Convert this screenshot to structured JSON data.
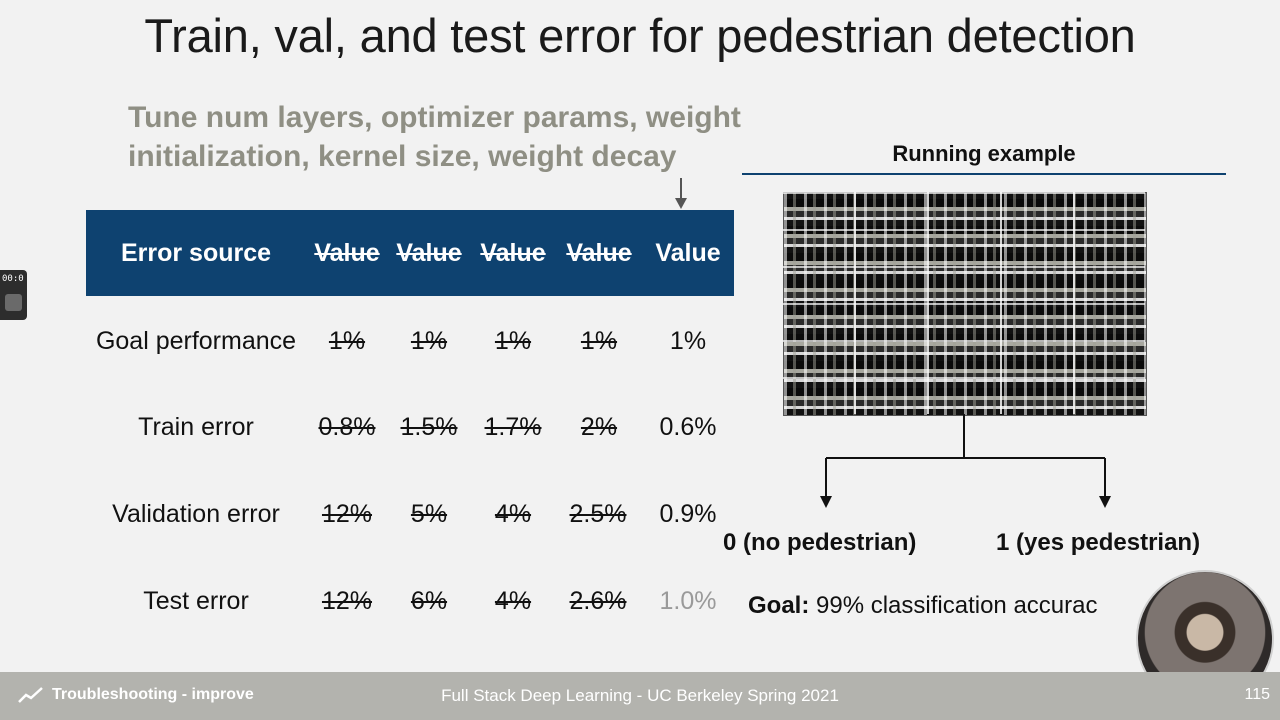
{
  "slide": {
    "title": "Train, val, and test error for pedestrian detection",
    "tune_note": "Tune num layers, optimizer params, weight initialization, kernel size, weight decay"
  },
  "table": {
    "header_label": "Error source",
    "value_headers": [
      "Value",
      "Value",
      "Value",
      "Value",
      "Value"
    ],
    "rows": [
      {
        "label": "Goal performance",
        "values": [
          "1%",
          "1%",
          "1%",
          "1%",
          "1%"
        ]
      },
      {
        "label": "Train error",
        "values": [
          "0.8%",
          "1.5%",
          "1.7%",
          "2%",
          "0.6%"
        ]
      },
      {
        "label": "Validation error",
        "values": [
          "12%",
          "5%",
          "4%",
          "2.5%",
          "0.9%"
        ]
      },
      {
        "label": "Test error",
        "values": [
          "12%",
          "6%",
          "4%",
          "2.6%",
          "1.0%"
        ]
      }
    ]
  },
  "running_example": {
    "title": "Running example",
    "outcome_no": "0 (no pedestrian)",
    "outcome_yes": "1 (yes pedestrian)",
    "goal_label": "Goal:",
    "goal_text": "99% classification accurac"
  },
  "timer": {
    "text": "00:0"
  },
  "footer": {
    "section": "Troubleshooting - improve",
    "course": "Full Stack Deep Learning - UC Berkeley Spring 2021",
    "page_number": "115"
  },
  "colors": {
    "header_blue": "#0e4270",
    "tune_grey": "#8f8f84",
    "footer_grey": "#b3b3ae"
  },
  "icons": {
    "footer": "trend-line-icon",
    "arrow": "arrow-down-icon"
  }
}
